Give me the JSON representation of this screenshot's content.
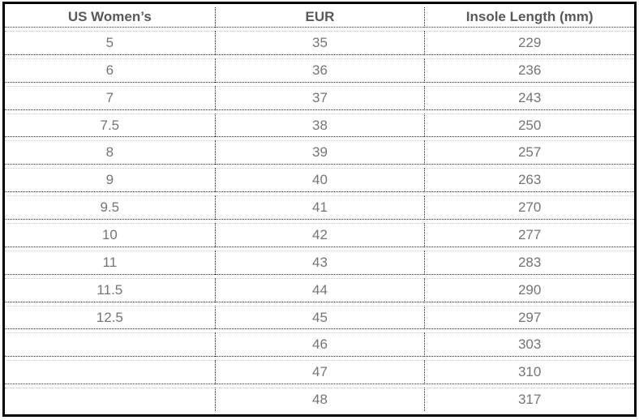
{
  "page": {
    "background_color": "#ffffff",
    "frame_border_color": "#000000",
    "separator_dark_color": "#2b2b2b",
    "separator_light_color": "#c9c9c9",
    "header_text_color": "#595959",
    "body_text_color": "#757575"
  },
  "chart_data": {
    "type": "table",
    "columns": [
      "US Women’s",
      "EUR",
      "Insole Length (mm)"
    ],
    "rows": [
      [
        "5",
        "35",
        "229"
      ],
      [
        "6",
        "36",
        "236"
      ],
      [
        "7",
        "37",
        "243"
      ],
      [
        "7.5",
        "38",
        "250"
      ],
      [
        "8",
        "39",
        "257"
      ],
      [
        "9",
        "40",
        "263"
      ],
      [
        "9.5",
        "41",
        "270"
      ],
      [
        "10",
        "42",
        "277"
      ],
      [
        "11",
        "43",
        "283"
      ],
      [
        "11.5",
        "44",
        "290"
      ],
      [
        "12.5",
        "45",
        "297"
      ],
      [
        "",
        "46",
        "303"
      ],
      [
        "",
        "47",
        "310"
      ],
      [
        "",
        "48",
        "317"
      ]
    ]
  }
}
